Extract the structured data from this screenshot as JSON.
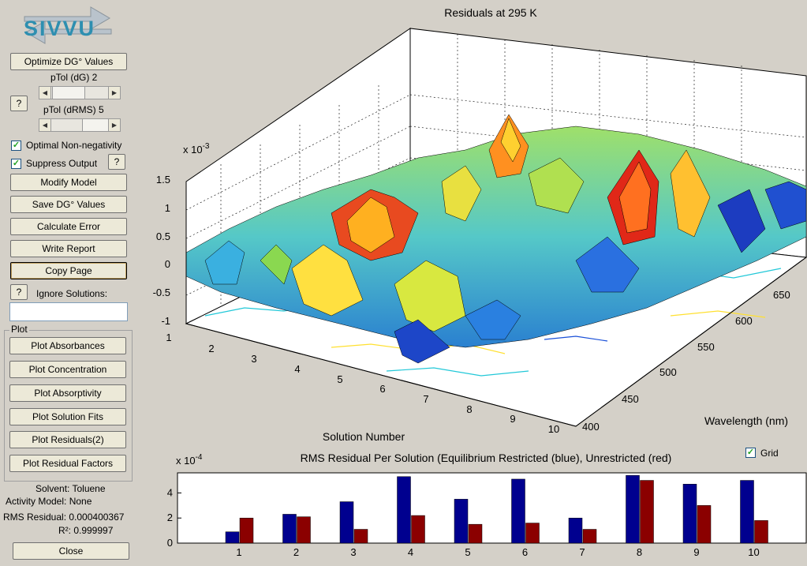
{
  "logo": {
    "text": "SIVVU"
  },
  "controls": {
    "optimize_label": "Optimize DG° Values",
    "ptol_dg_label": "pTol (dG) 2",
    "ptol_drms_label": "pTol (dRMS)  5",
    "help_label": "?",
    "optimal_nonneg_label": "Optimal Non-negativity",
    "suppress_output_label": "Suppress Output",
    "modify_model_label": "Modify Model",
    "save_dg_label": "Save DG° Values",
    "calc_error_label": "Calculate Error",
    "write_report_label": "Write Report",
    "copy_page_label": "Copy Page",
    "ignore_solutions_label": "Ignore Solutions:",
    "ignore_solutions_value": ""
  },
  "plot_panel": {
    "title": "Plot",
    "buttons": [
      "Plot Absorbances",
      "Plot Concentration",
      "Plot Absorptivity",
      "Plot Solution Fits",
      "Plot Residuals(2)",
      "Plot Residual Factors"
    ]
  },
  "info": {
    "solvent": "Solvent: Toluene",
    "activity_model": "Activity Model: None",
    "rms_residual": "RMS Residual: 0.000400367",
    "r2": "R²: 0.999997",
    "close_label": "Close"
  },
  "surface_plot": {
    "title": "Residuals at 295 K",
    "z_exponent": "x 10",
    "z_exponent_power": "-3",
    "z_ticks": [
      "1.5",
      "1",
      "0.5",
      "0",
      "-0.5",
      "-1"
    ],
    "x_ticks": [
      "1",
      "2",
      "3",
      "4",
      "5",
      "6",
      "7",
      "8",
      "9",
      "10"
    ],
    "x_label": "Solution Number",
    "y_ticks": [
      "400",
      "450",
      "500",
      "550",
      "600",
      "650"
    ],
    "y_label": "Wavelength (nm)"
  },
  "grid_toggle": {
    "label": "Grid",
    "checked": true
  },
  "chart_data": {
    "type": "bar",
    "title": "RMS Residual Per Solution (Equilibrium Restricted (blue), Unrestricted (red)",
    "y_exponent": "x 10",
    "y_exponent_power": "-4",
    "categories": [
      "1",
      "2",
      "3",
      "4",
      "5",
      "6",
      "7",
      "8",
      "9",
      "10"
    ],
    "y_ticks": [
      "0",
      "2",
      "4"
    ],
    "ylim": [
      0,
      5.6
    ],
    "grid": false,
    "series": [
      {
        "color": "#00008f",
        "values": [
          0.9,
          2.3,
          3.3,
          5.3,
          3.5,
          5.1,
          2.0,
          5.4,
          4.7,
          5.0
        ]
      },
      {
        "color": "#8b0000",
        "values": [
          2.0,
          2.1,
          1.1,
          2.2,
          1.5,
          1.6,
          1.1,
          5.0,
          3.0,
          1.8
        ]
      }
    ]
  }
}
